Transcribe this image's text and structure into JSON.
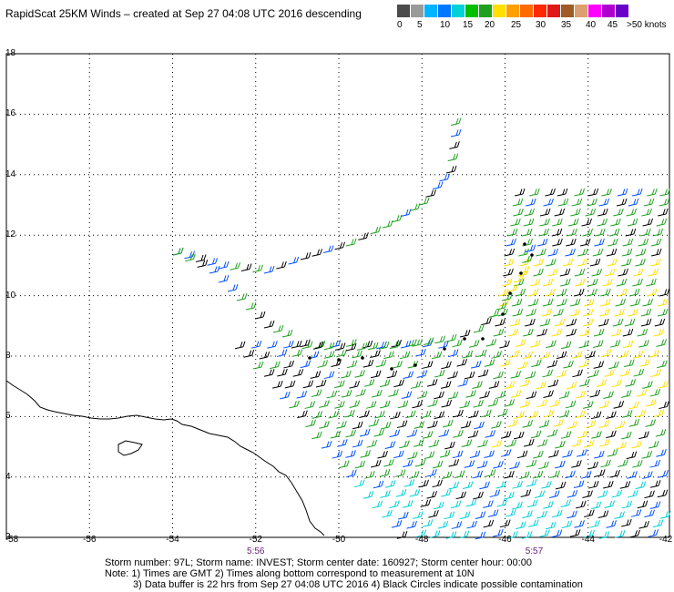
{
  "title": "RapidScat 25KM Winds – created at Sep 27 04:08 UTC 2016 descending",
  "legend": {
    "colors": [
      "#4b4b4b",
      "#9a9a9a",
      "#00b4ff",
      "#0078ff",
      "#00d0d8",
      "#00c000",
      "#1ea01e",
      "#ffe000",
      "#ffa000",
      "#ff6a00",
      "#ff2a00",
      "#e01818",
      "#a05a28",
      "#dca070",
      "#ff00ff",
      "#b000d0",
      "#6a00c8"
    ],
    "labels": [
      "0",
      "5",
      "10",
      "15",
      "20",
      "25",
      "30",
      "35",
      "40",
      "45",
      ">50 knots"
    ],
    "unit": "knots"
  },
  "axes": {
    "lat_ticks": [
      "18",
      "16",
      "14",
      "12",
      "10",
      "8",
      "6",
      "4",
      "2"
    ],
    "lon_ticks": [
      "-58",
      "-56",
      "-54",
      "-52",
      "-50",
      "-48",
      "-46",
      "-44",
      "-42"
    ]
  },
  "time_labels": [
    {
      "text": "5:56",
      "lon": -52
    },
    {
      "text": "5:57",
      "lon": -45.3
    }
  ],
  "footer": {
    "line1": "Storm number: 97L;  Storm name: INVEST;  Storm center date: 160927;  Storm center hour: 00:00",
    "line2": "Note: 1) Times are GMT  2) Times along bottom correspond to measurement at 10N",
    "line3": "3) Data buffer is 22 hrs from Sep 27 04:08 UTC 2016   4) Black Circles indicate possible contamination"
  }
}
